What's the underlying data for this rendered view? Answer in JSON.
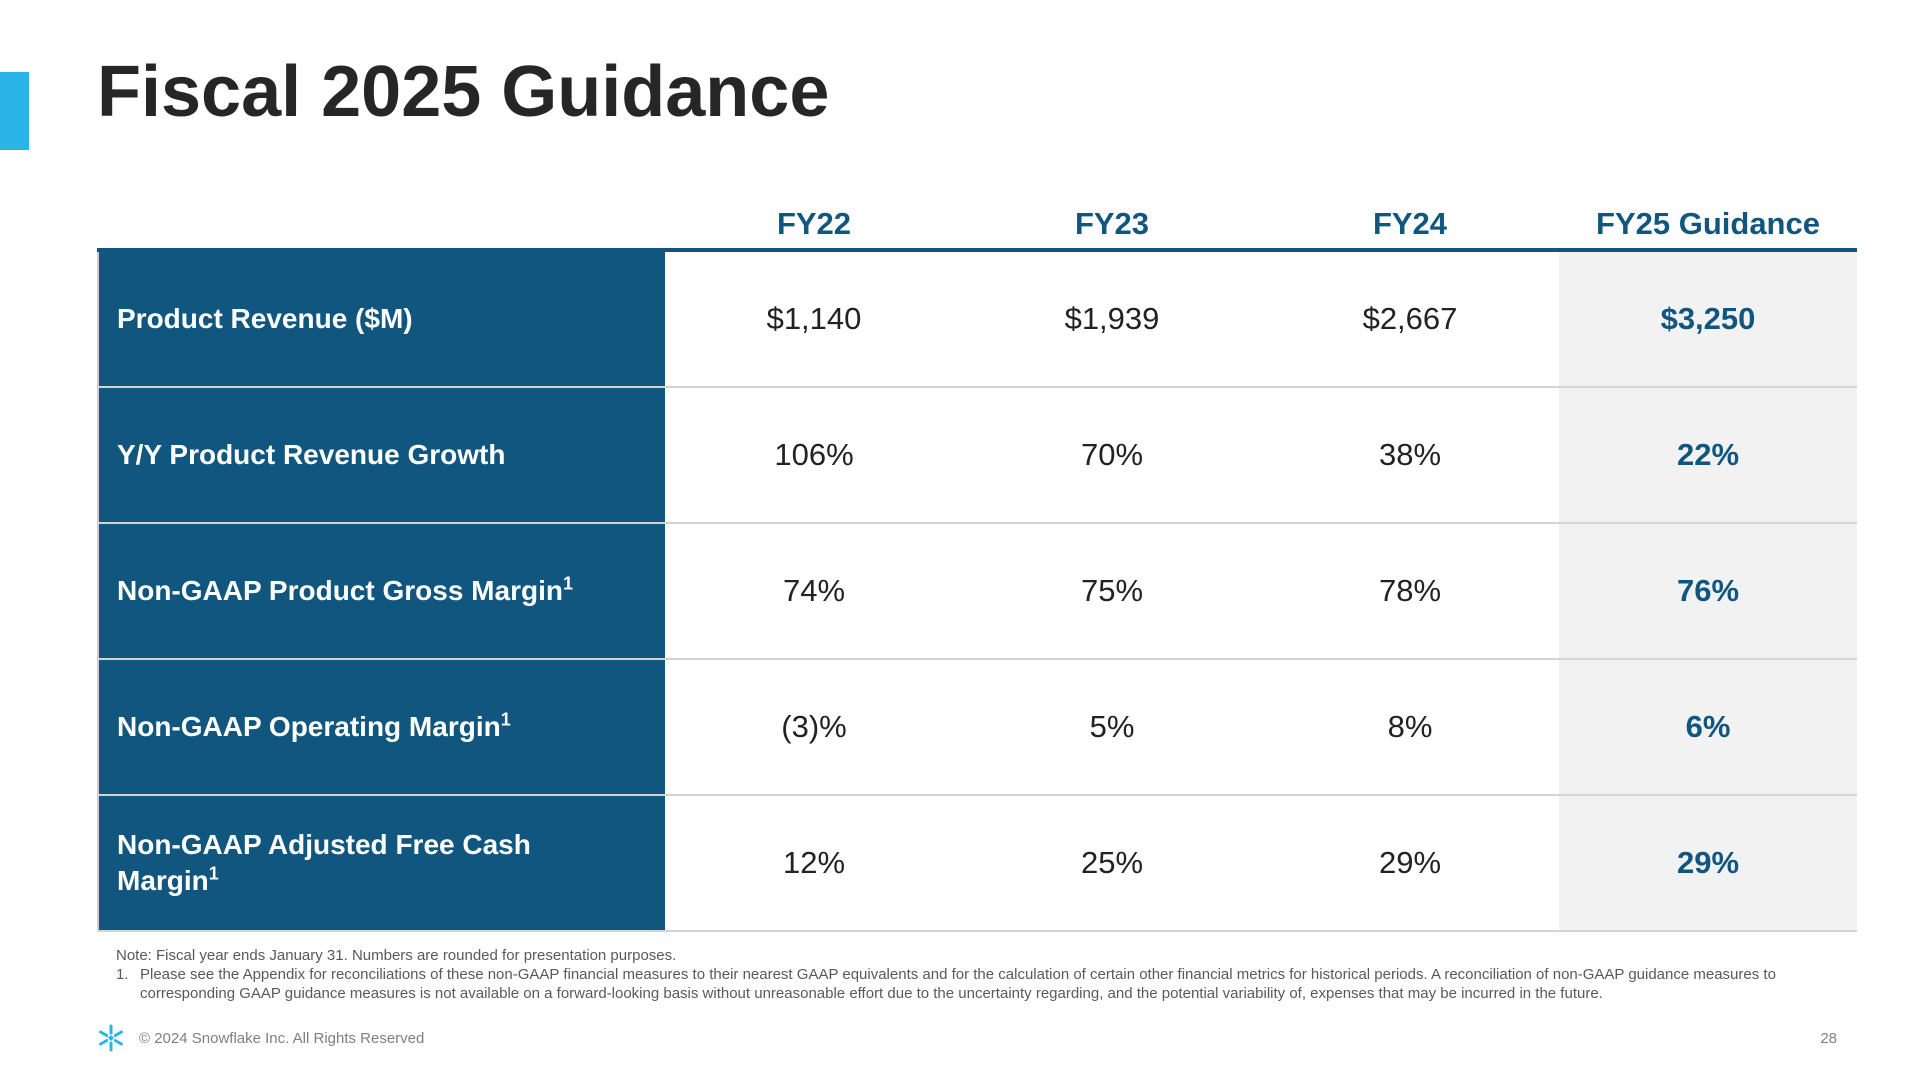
{
  "title": "Fiscal 2025 Guidance",
  "colors": {
    "accent": "#29b5e8",
    "header_blue": "#11567f",
    "guidance_bg": "#f2f2f2"
  },
  "table": {
    "columns": [
      "FY22",
      "FY23",
      "FY24",
      "FY25 Guidance"
    ],
    "rows": [
      {
        "label": "Product Revenue ($M)",
        "footnote": "",
        "values": [
          "$1,140",
          "$1,939",
          "$2,667",
          "$3,250"
        ]
      },
      {
        "label": "Y/Y Product Revenue Growth",
        "footnote": "",
        "values": [
          "106%",
          "70%",
          "38%",
          "22%"
        ]
      },
      {
        "label": "Non-GAAP Product Gross Margin",
        "footnote": "1",
        "values": [
          "74%",
          "75%",
          "78%",
          "76%"
        ]
      },
      {
        "label": "Non-GAAP Operating Margin",
        "footnote": "1",
        "values": [
          "(3)%",
          "5%",
          "8%",
          "6%"
        ]
      },
      {
        "label": "Non-GAAP Adjusted Free Cash Margin",
        "footnote": "1",
        "values": [
          "12%",
          "25%",
          "29%",
          "29%"
        ]
      }
    ]
  },
  "notes": {
    "note": "Note: Fiscal year ends January 31. Numbers are rounded for presentation purposes.",
    "footnote_number": "1.",
    "footnote_text": "Please see the Appendix for reconciliations of these non-GAAP financial measures to their nearest GAAP equivalents and for the calculation of certain other financial metrics for historical periods. A reconciliation of non-GAAP guidance measures to corresponding GAAP guidance measures is not available on a forward-looking basis without unreasonable effort due to the uncertainty regarding, and the potential variability of, expenses that may be incurred in the future."
  },
  "footer": {
    "logo_icon": "snowflake-icon",
    "copyright": "© 2024 Snowflake Inc. All Rights Reserved",
    "page_number": "28"
  }
}
